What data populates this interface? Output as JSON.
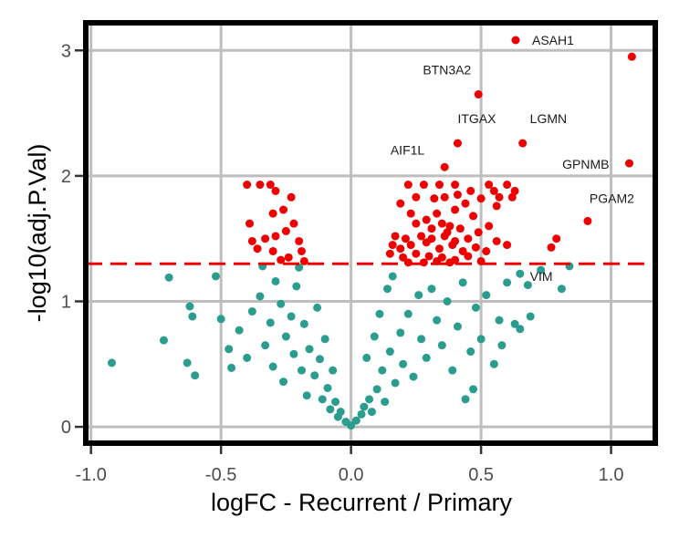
{
  "chart_data": {
    "type": "scatter",
    "title": "",
    "xlabel": "logFC - Recurrent / Primary",
    "ylabel": "-log10(adj.P.Val)",
    "xlim": [
      -1.02,
      1.17
    ],
    "ylim": [
      -0.13,
      3.22
    ],
    "xticks": [
      -1.0,
      -0.5,
      0.0,
      0.5,
      1.0
    ],
    "xtick_labels": [
      "-1.0",
      "-0.5",
      "0.0",
      "0.5",
      "1.0"
    ],
    "yticks": [
      0,
      1,
      2,
      3
    ],
    "ytick_labels": [
      "0",
      "1",
      "2",
      "3"
    ],
    "grid": true,
    "threshold_y": 1.3,
    "colors": {
      "significant": "#ee0000",
      "nonsignificant": "#2a9d8f",
      "threshold": "#ee0000",
      "grid": "#bebebe",
      "frame": "#000000"
    },
    "legend": {
      "position": "top-right",
      "entries": [
        {
          "label": "ASAH1",
          "color": "#ee0000"
        }
      ]
    },
    "labeled_points": [
      {
        "label": "ASAH1",
        "x": 1.08,
        "y": 2.95
      },
      {
        "label": "BTN3A2",
        "x": 0.49,
        "y": 2.65
      },
      {
        "label": "ITGAX",
        "x": 0.41,
        "y": 2.26
      },
      {
        "label": "LGMN",
        "x": 0.66,
        "y": 2.26
      },
      {
        "label": "AIF1L",
        "x": 0.36,
        "y": 2.07
      },
      {
        "label": "GPNMB",
        "x": 1.07,
        "y": 2.1
      },
      {
        "label": "PGAM2",
        "x": 0.91,
        "y": 1.64
      },
      {
        "label": "VIM",
        "x": 0.73,
        "y": 1.25
      }
    ],
    "significant_points": [
      [
        -0.4,
        1.93
      ],
      [
        -0.35,
        1.93
      ],
      [
        -0.31,
        1.93
      ],
      [
        -0.29,
        1.88
      ],
      [
        -0.23,
        1.83
      ],
      [
        -0.26,
        1.73
      ],
      [
        -0.3,
        1.7
      ],
      [
        -0.39,
        1.62
      ],
      [
        -0.22,
        1.62
      ],
      [
        -0.25,
        1.56
      ],
      [
        -0.33,
        1.5
      ],
      [
        -0.29,
        1.52
      ],
      [
        -0.2,
        1.48
      ],
      [
        -0.19,
        1.4
      ],
      [
        -0.38,
        1.48
      ],
      [
        -0.24,
        1.35
      ],
      [
        -0.36,
        1.42
      ],
      [
        -0.27,
        1.33
      ],
      [
        -0.3,
        1.4
      ],
      [
        -0.18,
        1.32
      ],
      [
        0.22,
        1.93
      ],
      [
        0.28,
        1.93
      ],
      [
        0.34,
        1.93
      ],
      [
        0.4,
        1.93
      ],
      [
        0.46,
        1.88
      ],
      [
        0.53,
        1.93
      ],
      [
        0.25,
        1.83
      ],
      [
        0.32,
        1.82
      ],
      [
        0.36,
        1.83
      ],
      [
        0.41,
        1.85
      ],
      [
        0.5,
        1.82
      ],
      [
        0.57,
        1.83
      ],
      [
        0.62,
        1.83
      ],
      [
        0.19,
        1.78
      ],
      [
        0.44,
        1.78
      ],
      [
        0.56,
        1.76
      ],
      [
        0.4,
        1.73
      ],
      [
        0.23,
        1.7
      ],
      [
        0.33,
        1.7
      ],
      [
        0.29,
        1.65
      ],
      [
        0.47,
        1.68
      ],
      [
        0.25,
        1.62
      ],
      [
        0.35,
        1.62
      ],
      [
        0.38,
        1.6
      ],
      [
        0.42,
        1.58
      ],
      [
        0.53,
        1.6
      ],
      [
        0.17,
        1.52
      ],
      [
        0.21,
        1.5
      ],
      [
        0.27,
        1.52
      ],
      [
        0.31,
        1.5
      ],
      [
        0.36,
        1.52
      ],
      [
        0.4,
        1.48
      ],
      [
        0.45,
        1.5
      ],
      [
        0.49,
        1.55
      ],
      [
        0.56,
        1.48
      ],
      [
        0.16,
        1.45
      ],
      [
        0.19,
        1.42
      ],
      [
        0.23,
        1.45
      ],
      [
        0.29,
        1.47
      ],
      [
        0.34,
        1.42
      ],
      [
        0.39,
        1.45
      ],
      [
        0.43,
        1.4
      ],
      [
        0.48,
        1.43
      ],
      [
        0.52,
        1.4
      ],
      [
        0.15,
        1.38
      ],
      [
        0.2,
        1.35
      ],
      [
        0.25,
        1.38
      ],
      [
        0.3,
        1.36
      ],
      [
        0.35,
        1.35
      ],
      [
        0.4,
        1.33
      ],
      [
        0.45,
        1.36
      ],
      [
        0.5,
        1.32
      ],
      [
        0.22,
        1.31
      ],
      [
        0.28,
        1.31
      ],
      [
        0.33,
        1.32
      ],
      [
        0.38,
        1.31
      ],
      [
        0.6,
        1.45
      ],
      [
        0.79,
        1.5
      ],
      [
        0.77,
        1.43
      ],
      [
        0.63,
        1.88
      ],
      [
        0.55,
        1.88
      ],
      [
        0.6,
        1.93
      ],
      [
        0.31,
        1.58
      ],
      [
        0.37,
        1.55
      ]
    ],
    "nonsignificant_points": [
      [
        -0.92,
        0.51
      ],
      [
        -0.72,
        0.69
      ],
      [
        -0.7,
        1.19
      ],
      [
        -0.63,
        0.51
      ],
      [
        -0.6,
        0.41
      ],
      [
        -0.62,
        0.96
      ],
      [
        -0.61,
        0.88
      ],
      [
        -0.52,
        1.2
      ],
      [
        -0.5,
        0.86
      ],
      [
        -0.47,
        0.62
      ],
      [
        -0.46,
        0.47
      ],
      [
        -0.43,
        0.77
      ],
      [
        -0.4,
        0.55
      ],
      [
        -0.38,
        0.92
      ],
      [
        -0.35,
        1.04
      ],
      [
        -0.33,
        0.65
      ],
      [
        -0.31,
        0.83
      ],
      [
        -0.29,
        1.16
      ],
      [
        -0.3,
        0.48
      ],
      [
        -0.27,
        0.98
      ],
      [
        -0.25,
        0.72
      ],
      [
        -0.26,
        0.36
      ],
      [
        -0.23,
        0.88
      ],
      [
        -0.21,
        1.12
      ],
      [
        -0.22,
        0.58
      ],
      [
        -0.19,
        0.45
      ],
      [
        -0.18,
        0.82
      ],
      [
        -0.16,
        0.62
      ],
      [
        -0.17,
        0.25
      ],
      [
        -0.14,
        0.41
      ],
      [
        -0.12,
        0.54
      ],
      [
        -0.11,
        0.22
      ],
      [
        -0.09,
        0.31
      ],
      [
        -0.08,
        0.14
      ],
      [
        -0.06,
        0.2
      ],
      [
        -0.05,
        0.08
      ],
      [
        -0.04,
        0.12
      ],
      [
        -0.02,
        0.04
      ],
      [
        0.0,
        0.01
      ],
      [
        0.02,
        0.05
      ],
      [
        0.04,
        0.1
      ],
      [
        0.05,
        0.16
      ],
      [
        0.07,
        0.22
      ],
      [
        0.08,
        0.12
      ],
      [
        0.1,
        0.3
      ],
      [
        0.12,
        0.45
      ],
      [
        0.13,
        0.2
      ],
      [
        0.15,
        0.6
      ],
      [
        0.17,
        0.35
      ],
      [
        0.19,
        0.75
      ],
      [
        0.2,
        0.5
      ],
      [
        0.22,
        0.9
      ],
      [
        0.24,
        0.4
      ],
      [
        0.26,
        1.05
      ],
      [
        0.27,
        0.7
      ],
      [
        0.29,
        0.55
      ],
      [
        0.31,
        1.1
      ],
      [
        0.33,
        0.85
      ],
      [
        0.35,
        0.65
      ],
      [
        0.37,
        1.0
      ],
      [
        0.39,
        0.45
      ],
      [
        0.41,
        0.8
      ],
      [
        0.43,
        1.15
      ],
      [
        0.46,
        0.6
      ],
      [
        0.48,
        0.95
      ],
      [
        0.5,
        0.7
      ],
      [
        0.52,
        1.05
      ],
      [
        0.55,
        0.5
      ],
      [
        0.47,
        0.3
      ],
      [
        0.57,
        0.85
      ],
      [
        0.58,
        0.65
      ],
      [
        0.6,
        1.15
      ],
      [
        0.63,
        0.82
      ],
      [
        0.65,
        0.78
      ],
      [
        0.69,
        0.88
      ],
      [
        0.68,
        1.13
      ],
      [
        0.81,
        1.1
      ],
      [
        0.84,
        1.28
      ],
      [
        0.65,
        1.22
      ],
      [
        0.44,
        0.22
      ],
      [
        -0.2,
        1.27
      ],
      [
        -0.34,
        1.28
      ],
      [
        0.11,
        0.9
      ],
      [
        0.14,
        1.1
      ],
      [
        -0.1,
        0.7
      ],
      [
        -0.13,
        0.95
      ],
      [
        0.06,
        0.55
      ],
      [
        -0.07,
        0.45
      ],
      [
        0.09,
        0.72
      ],
      [
        0.16,
        1.2
      ]
    ]
  }
}
